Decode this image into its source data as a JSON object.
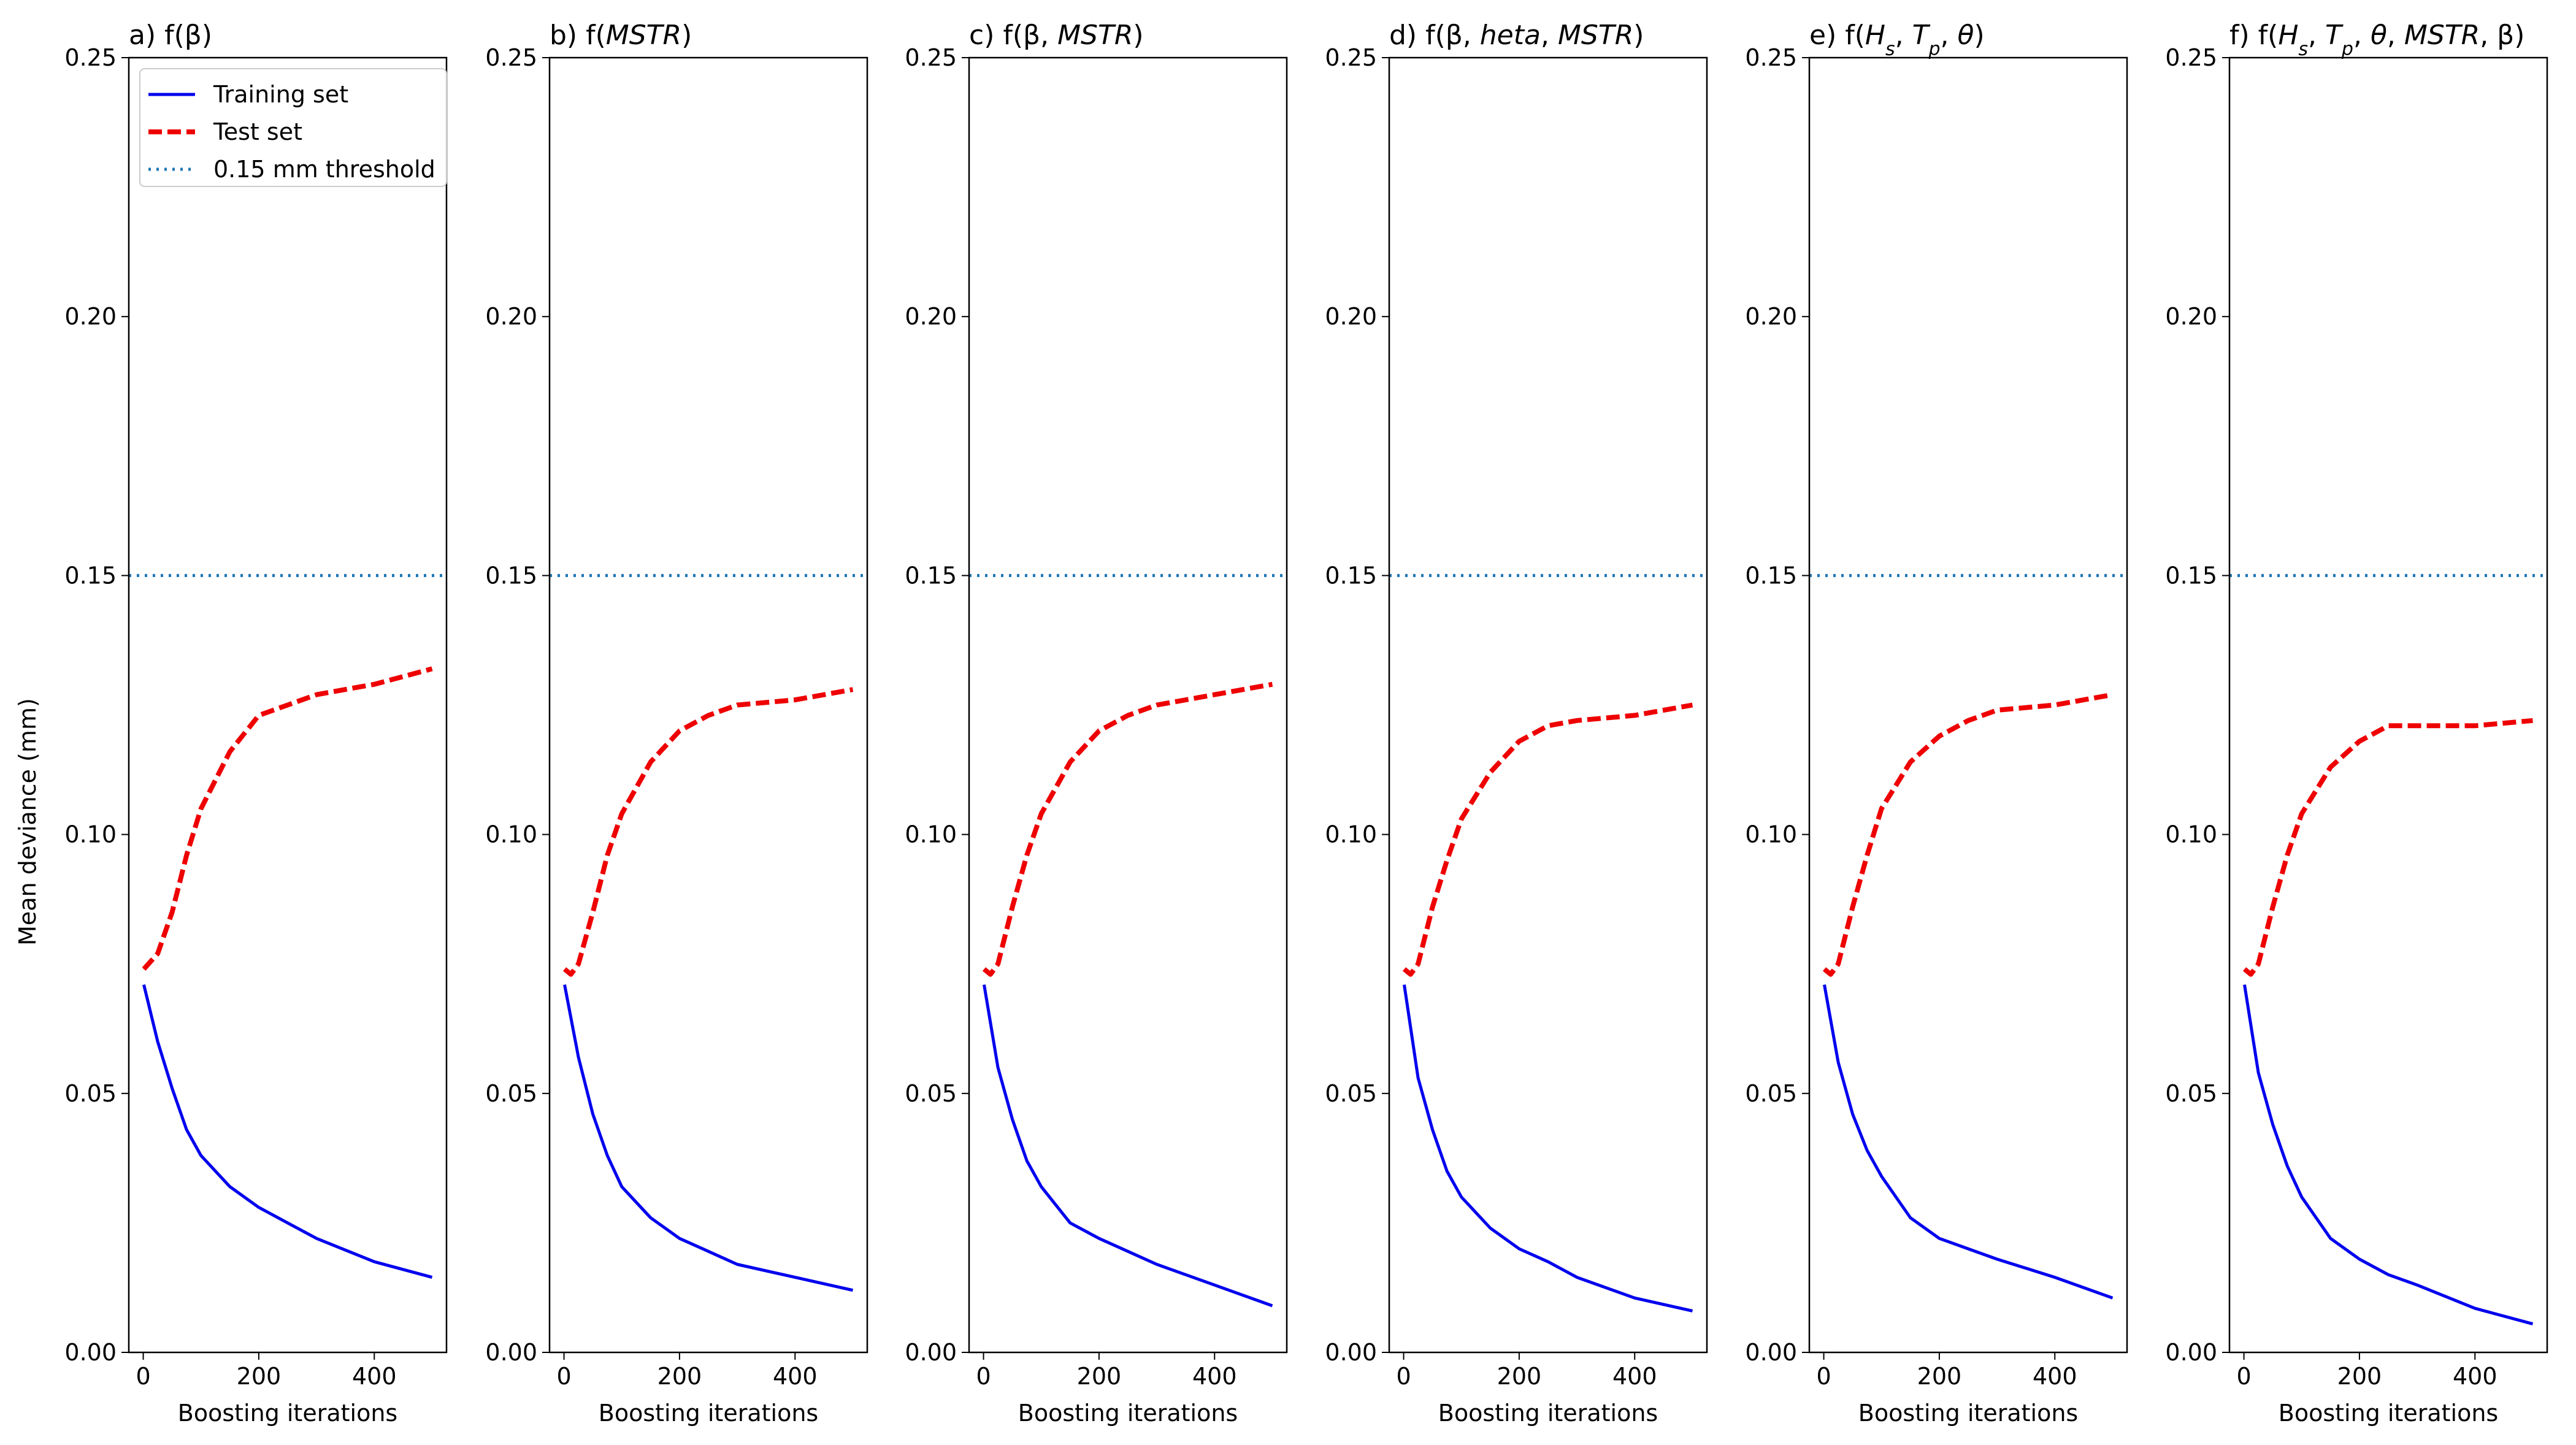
{
  "figure": {
    "ylabel": "Mean deviance (mm)"
  },
  "chart_data": [
    {
      "type": "line",
      "panel": "a",
      "title_parts": [
        {
          "t": "a) f(β)"
        }
      ],
      "xlabel": "Boosting iterations",
      "ylabel": "Mean deviance (mm)",
      "xlim": [
        -25,
        525
      ],
      "ylim": [
        0,
        0.25
      ],
      "xticks": [
        0,
        200,
        400
      ],
      "yticks": [
        "0.00",
        "0.05",
        "0.10",
        "0.15",
        "0.20",
        "0.25"
      ],
      "legend": {
        "placement": "top-left",
        "entries": [
          "Training set",
          "Test set",
          "0.15 mm threshold"
        ]
      },
      "series": [
        {
          "name": "Training set",
          "color": "#0000ee",
          "style": "solid",
          "x": [
            1,
            25,
            50,
            75,
            100,
            150,
            200,
            250,
            300,
            400,
            500
          ],
          "y": [
            0.071,
            0.06,
            0.051,
            0.043,
            0.038,
            0.032,
            0.028,
            0.025,
            0.022,
            0.0175,
            0.0145
          ]
        },
        {
          "name": "Test set",
          "color": "#ee0000",
          "style": "dashed",
          "x": [
            1,
            25,
            50,
            75,
            100,
            150,
            200,
            250,
            300,
            400,
            500
          ],
          "y": [
            0.074,
            0.077,
            0.085,
            0.096,
            0.105,
            0.116,
            0.123,
            0.125,
            0.127,
            0.129,
            0.132
          ]
        },
        {
          "name": "0.15 mm threshold",
          "color": "#1f77b4",
          "style": "dotted",
          "y_const": 0.15
        }
      ]
    },
    {
      "type": "line",
      "panel": "b",
      "title_parts": [
        {
          "t": "b) f("
        },
        {
          "t": "MSTR",
          "i": true
        },
        {
          "t": ")"
        }
      ],
      "xlabel": "Boosting iterations",
      "xlim": [
        -25,
        525
      ],
      "ylim": [
        0,
        0.25
      ],
      "xticks": [
        0,
        200,
        400
      ],
      "yticks": [
        "0.00",
        "0.05",
        "0.10",
        "0.15",
        "0.20",
        "0.25"
      ],
      "series": [
        {
          "name": "Training set",
          "color": "#0000ee",
          "style": "solid",
          "x": [
            1,
            25,
            50,
            75,
            100,
            150,
            200,
            250,
            300,
            400,
            500
          ],
          "y": [
            0.071,
            0.057,
            0.046,
            0.038,
            0.032,
            0.026,
            0.022,
            0.0195,
            0.017,
            0.0145,
            0.012
          ]
        },
        {
          "name": "Test set",
          "color": "#ee0000",
          "style": "dashed",
          "x": [
            1,
            12,
            25,
            50,
            75,
            100,
            150,
            200,
            250,
            300,
            400,
            500
          ],
          "y": [
            0.074,
            0.073,
            0.075,
            0.085,
            0.096,
            0.104,
            0.114,
            0.12,
            0.123,
            0.125,
            0.126,
            0.128
          ]
        },
        {
          "name": "0.15 mm threshold",
          "color": "#1f77b4",
          "style": "dotted",
          "y_const": 0.15
        }
      ]
    },
    {
      "type": "line",
      "panel": "c",
      "title_parts": [
        {
          "t": "c) f(β, "
        },
        {
          "t": "MSTR",
          "i": true
        },
        {
          "t": ")"
        }
      ],
      "xlabel": "Boosting iterations",
      "xlim": [
        -25,
        525
      ],
      "ylim": [
        0,
        0.25
      ],
      "xticks": [
        0,
        200,
        400
      ],
      "yticks": [
        "0.00",
        "0.05",
        "0.10",
        "0.15",
        "0.20",
        "0.25"
      ],
      "series": [
        {
          "name": "Training set",
          "color": "#0000ee",
          "style": "solid",
          "x": [
            1,
            25,
            50,
            75,
            100,
            150,
            200,
            250,
            300,
            400,
            500
          ],
          "y": [
            0.071,
            0.055,
            0.045,
            0.037,
            0.032,
            0.025,
            0.022,
            0.0195,
            0.017,
            0.013,
            0.009
          ]
        },
        {
          "name": "Test set",
          "color": "#ee0000",
          "style": "dashed",
          "x": [
            1,
            12,
            25,
            50,
            75,
            100,
            150,
            200,
            250,
            300,
            400,
            500
          ],
          "y": [
            0.074,
            0.073,
            0.075,
            0.086,
            0.096,
            0.104,
            0.114,
            0.12,
            0.123,
            0.125,
            0.127,
            0.129
          ]
        },
        {
          "name": "0.15 mm threshold",
          "color": "#1f77b4",
          "style": "dotted",
          "y_const": 0.15
        }
      ]
    },
    {
      "type": "line",
      "panel": "d",
      "title_parts": [
        {
          "t": "d) f(β, "
        },
        {
          "t": "heta",
          "i": true
        },
        {
          "t": ", "
        },
        {
          "t": "MSTR",
          "i": true
        },
        {
          "t": ")"
        }
      ],
      "xlabel": "Boosting iterations",
      "xlim": [
        -25,
        525
      ],
      "ylim": [
        0,
        0.25
      ],
      "xticks": [
        0,
        200,
        400
      ],
      "yticks": [
        "0.00",
        "0.05",
        "0.10",
        "0.15",
        "0.20",
        "0.25"
      ],
      "series": [
        {
          "name": "Training set",
          "color": "#0000ee",
          "style": "solid",
          "x": [
            1,
            25,
            50,
            75,
            100,
            150,
            200,
            250,
            300,
            400,
            500
          ],
          "y": [
            0.071,
            0.053,
            0.043,
            0.035,
            0.03,
            0.024,
            0.02,
            0.0175,
            0.0145,
            0.0105,
            0.008
          ]
        },
        {
          "name": "Test set",
          "color": "#ee0000",
          "style": "dashed",
          "x": [
            1,
            12,
            25,
            50,
            75,
            100,
            150,
            200,
            250,
            300,
            400,
            500
          ],
          "y": [
            0.074,
            0.073,
            0.075,
            0.086,
            0.095,
            0.103,
            0.112,
            0.118,
            0.121,
            0.122,
            0.123,
            0.125
          ]
        },
        {
          "name": "0.15 mm threshold",
          "color": "#1f77b4",
          "style": "dotted",
          "y_const": 0.15
        }
      ]
    },
    {
      "type": "line",
      "panel": "e",
      "title_parts": [
        {
          "t": "e) f("
        },
        {
          "t": "H",
          "i": true
        },
        {
          "t": "s",
          "i": true,
          "sub": true
        },
        {
          "t": ", "
        },
        {
          "t": "T",
          "i": true
        },
        {
          "t": "p",
          "i": true,
          "sub": true
        },
        {
          "t": ", "
        },
        {
          "t": "θ",
          "i": true
        },
        {
          "t": ")"
        }
      ],
      "xlabel": "Boosting iterations",
      "xlim": [
        -25,
        525
      ],
      "ylim": [
        0,
        0.25
      ],
      "xticks": [
        0,
        200,
        400
      ],
      "yticks": [
        "0.00",
        "0.05",
        "0.10",
        "0.15",
        "0.20",
        "0.25"
      ],
      "series": [
        {
          "name": "Training set",
          "color": "#0000ee",
          "style": "solid",
          "x": [
            1,
            25,
            50,
            75,
            100,
            150,
            200,
            250,
            300,
            400,
            500
          ],
          "y": [
            0.071,
            0.056,
            0.046,
            0.039,
            0.034,
            0.026,
            0.022,
            0.02,
            0.018,
            0.0145,
            0.0105
          ]
        },
        {
          "name": "Test set",
          "color": "#ee0000",
          "style": "dashed",
          "x": [
            1,
            12,
            25,
            50,
            75,
            100,
            150,
            200,
            250,
            300,
            400,
            500
          ],
          "y": [
            0.074,
            0.073,
            0.075,
            0.086,
            0.096,
            0.105,
            0.114,
            0.119,
            0.122,
            0.124,
            0.125,
            0.127
          ]
        },
        {
          "name": "0.15 mm threshold",
          "color": "#1f77b4",
          "style": "dotted",
          "y_const": 0.15
        }
      ]
    },
    {
      "type": "line",
      "panel": "f",
      "title_parts": [
        {
          "t": "f) f("
        },
        {
          "t": "H",
          "i": true
        },
        {
          "t": "s",
          "i": true,
          "sub": true
        },
        {
          "t": ", "
        },
        {
          "t": "T",
          "i": true
        },
        {
          "t": "p",
          "i": true,
          "sub": true
        },
        {
          "t": ", "
        },
        {
          "t": "θ",
          "i": true
        },
        {
          "t": ", "
        },
        {
          "t": "MSTR",
          "i": true
        },
        {
          "t": ", β)"
        }
      ],
      "xlabel": "Boosting iterations",
      "xlim": [
        -25,
        525
      ],
      "ylim": [
        0,
        0.25
      ],
      "xticks": [
        0,
        200,
        400
      ],
      "yticks": [
        "0.00",
        "0.05",
        "0.10",
        "0.15",
        "0.20",
        "0.25"
      ],
      "series": [
        {
          "name": "Training set",
          "color": "#0000ee",
          "style": "solid",
          "x": [
            1,
            25,
            50,
            75,
            100,
            150,
            200,
            250,
            300,
            400,
            500
          ],
          "y": [
            0.071,
            0.054,
            0.044,
            0.036,
            0.03,
            0.022,
            0.018,
            0.015,
            0.013,
            0.0085,
            0.0055
          ]
        },
        {
          "name": "Test set",
          "color": "#ee0000",
          "style": "dashed",
          "x": [
            1,
            12,
            25,
            50,
            75,
            100,
            150,
            200,
            250,
            300,
            400,
            500
          ],
          "y": [
            0.074,
            0.073,
            0.075,
            0.086,
            0.096,
            0.104,
            0.113,
            0.118,
            0.121,
            0.121,
            0.121,
            0.122
          ]
        },
        {
          "name": "0.15 mm threshold",
          "color": "#1f77b4",
          "style": "dotted",
          "y_const": 0.15
        }
      ]
    }
  ]
}
